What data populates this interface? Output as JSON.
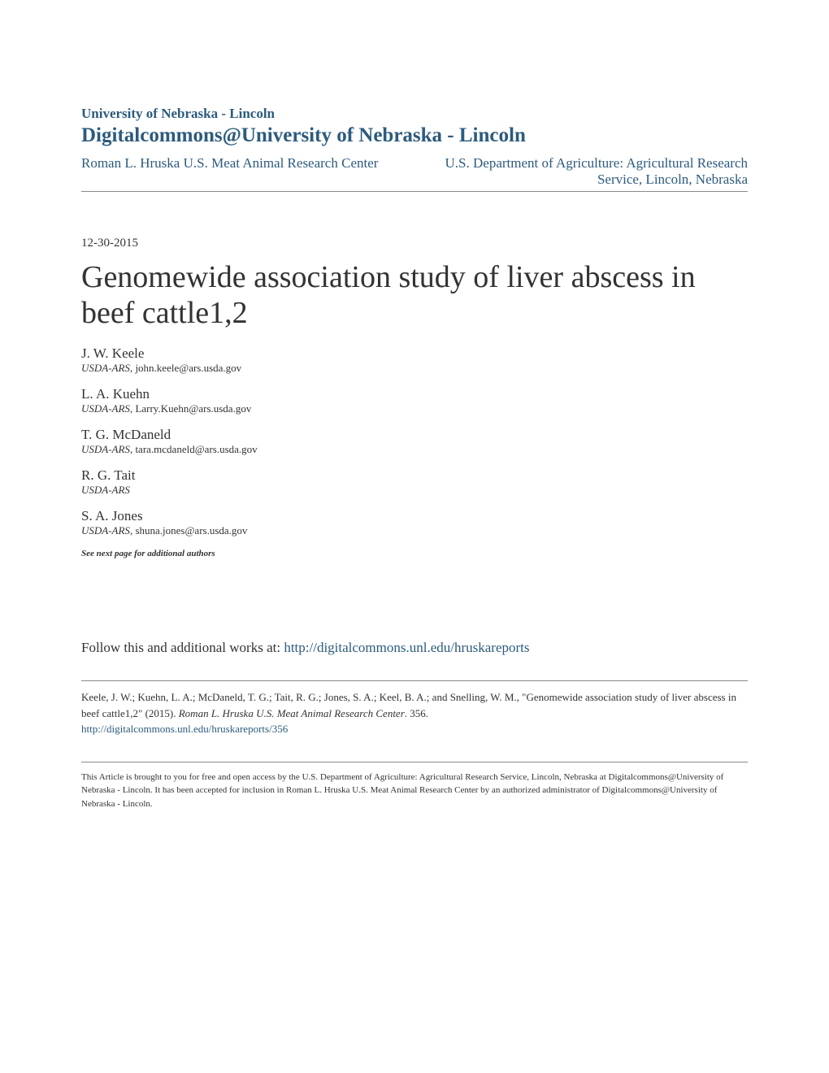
{
  "header": {
    "institution": "University of Nebraska - Lincoln",
    "repository": "Digitalcommons@University of Nebraska - Lincoln",
    "breadcrumb_left": "Roman L. Hruska U.S. Meat Animal Research Center",
    "breadcrumb_right": "U.S. Department of Agriculture: Agricultural Research Service, Lincoln, Nebraska"
  },
  "date": "12-30-2015",
  "title": "Genomewide association study of liver abscess in beef cattle1,2",
  "authors": [
    {
      "name": "J. W. Keele",
      "affiliation": "USDA-ARS",
      "email": ", john.keele@ars.usda.gov"
    },
    {
      "name": "L. A. Kuehn",
      "affiliation": "USDA-ARS",
      "email": ", Larry.Kuehn@ars.usda.gov"
    },
    {
      "name": "T. G. McDaneld",
      "affiliation": "USDA-ARS",
      "email": ", tara.mcdaneld@ars.usda.gov"
    },
    {
      "name": "R. G. Tait",
      "affiliation": "USDA-ARS",
      "email": ""
    },
    {
      "name": "S. A. Jones",
      "affiliation": "USDA-ARS",
      "email": ", shuna.jones@ars.usda.gov"
    }
  ],
  "see_next": "See next page for additional authors",
  "follow": {
    "prefix": "Follow this and additional works at: ",
    "link": "http://digitalcommons.unl.edu/hruskareports"
  },
  "citation": {
    "text_before_italic": "Keele, J. W.; Kuehn, L. A.; McDaneld, T. G.; Tait, R. G.; Jones, S. A.; Keel, B. A.; and Snelling, W. M., \"Genomewide association study of liver abscess in beef cattle1,2\" (2015). ",
    "italic_text": "Roman L. Hruska U.S. Meat Animal Research Center",
    "text_after_italic": ". 356.",
    "link": "http://digitalcommons.unl.edu/hruskareports/356"
  },
  "footer": "This Article is brought to you for free and open access by the U.S. Department of Agriculture: Agricultural Research Service, Lincoln, Nebraska at Digitalcommons@University of Nebraska - Lincoln. It has been accepted for inclusion in Roman L. Hruska U.S. Meat Animal Research Center by an authorized administrator of Digitalcommons@University of Nebraska - Lincoln.",
  "colors": {
    "link_color": "#2c5b7d",
    "text_color": "#333333",
    "border_color": "#888888",
    "background_color": "#ffffff"
  }
}
